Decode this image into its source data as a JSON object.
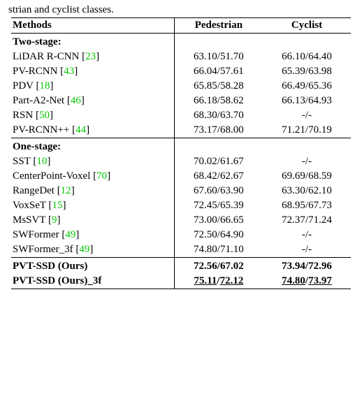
{
  "caption_fragment": "strian and cyclist classes.",
  "header": {
    "methods": "Methods",
    "ped": "Pedestrian",
    "cyc": "Cyclist"
  },
  "two_stage_label": "Two-stage:",
  "one_stage_label": "One-stage:",
  "cite_color": "#00c800",
  "two_stage": [
    {
      "name": "LiDAR R-CNN",
      "cite": "23",
      "ped": "63.10/51.70",
      "cyc": "66.10/64.40"
    },
    {
      "name": "PV-RCNN",
      "cite": "43",
      "ped": "66.04/57.61",
      "cyc": "65.39/63.98"
    },
    {
      "name": "PDV",
      "cite": "18",
      "ped": "65.85/58.28",
      "cyc": "66.49/65.36"
    },
    {
      "name": "Part-A2-Net",
      "cite": "46",
      "ped": "66.18/58.62",
      "cyc": "66.13/64.93"
    },
    {
      "name": "RSN",
      "cite": "50",
      "ped": "68.30/63.70",
      "cyc": "-/-"
    },
    {
      "name": "PV-RCNN++",
      "cite": "44",
      "ped": "73.17/68.00",
      "cyc": "71.21/70.19"
    }
  ],
  "one_stage": [
    {
      "name": "SST",
      "cite": "10",
      "ped": "70.02/61.67",
      "cyc": "-/-"
    },
    {
      "name": "CenterPoint-Voxel",
      "cite": "70",
      "ped": "68.42/62.67",
      "cyc": "69.69/68.59"
    },
    {
      "name": "RangeDet",
      "cite": "12",
      "ped": "67.60/63.90",
      "cyc": "63.30/62.10"
    },
    {
      "name": "VoxSeT",
      "cite": "15",
      "ped": "72.45/65.39",
      "cyc": "68.95/67.73"
    },
    {
      "name": "MsSVT",
      "cite": "9",
      "ped": "73.00/66.65",
      "cyc": "72.37/71.24"
    },
    {
      "name": "SWFormer",
      "cite": "49",
      "ped": "72.50/64.90",
      "cyc": "-/-"
    },
    {
      "name": "SWFormer_3f",
      "cite": "49",
      "ped": "74.80/71.10",
      "cyc": "-/-"
    }
  ],
  "ours": [
    {
      "name": "PVT-SSD (Ours)",
      "ped": "72.56/67.02",
      "cyc": "73.94/72.96",
      "underline": false
    },
    {
      "name": "PVT-SSD_3f (Ours)",
      "ped_a": "75.11",
      "ped_b": "72.12",
      "cyc_a": "74.80",
      "cyc_b": "73.97",
      "underline": true
    }
  ]
}
